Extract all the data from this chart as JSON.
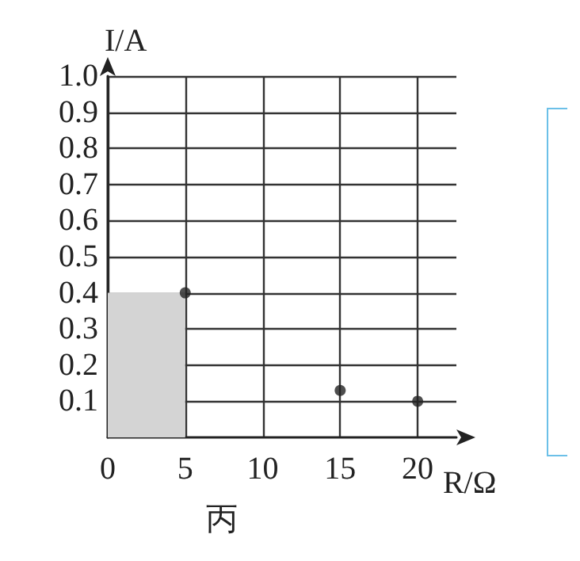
{
  "chart_data": {
    "type": "scatter",
    "xlabel": "R/Ω",
    "ylabel": "I/A",
    "annotations": [
      "丙"
    ],
    "xlim": [
      0,
      22.5
    ],
    "xticks": [
      0,
      5,
      10,
      15,
      20
    ],
    "ylim": [
      0,
      1
    ],
    "yticks": [
      0.1,
      0.2,
      0.3,
      0.4,
      0.5,
      0.6,
      0.7,
      0.8,
      0.9,
      {
        "value": 1,
        "label": "1.0"
      }
    ],
    "grid": true,
    "marker": "circle",
    "series": [
      {
        "type": "area",
        "marker": "none",
        "color": "#d4d4d4",
        "x": [
          0,
          5
        ],
        "values": [
          0.4,
          0.4
        ]
      },
      {
        "color": "#222222",
        "x": [
          5,
          15,
          20
        ],
        "values": [
          0.4,
          0.13,
          0.1
        ]
      }
    ]
  }
}
